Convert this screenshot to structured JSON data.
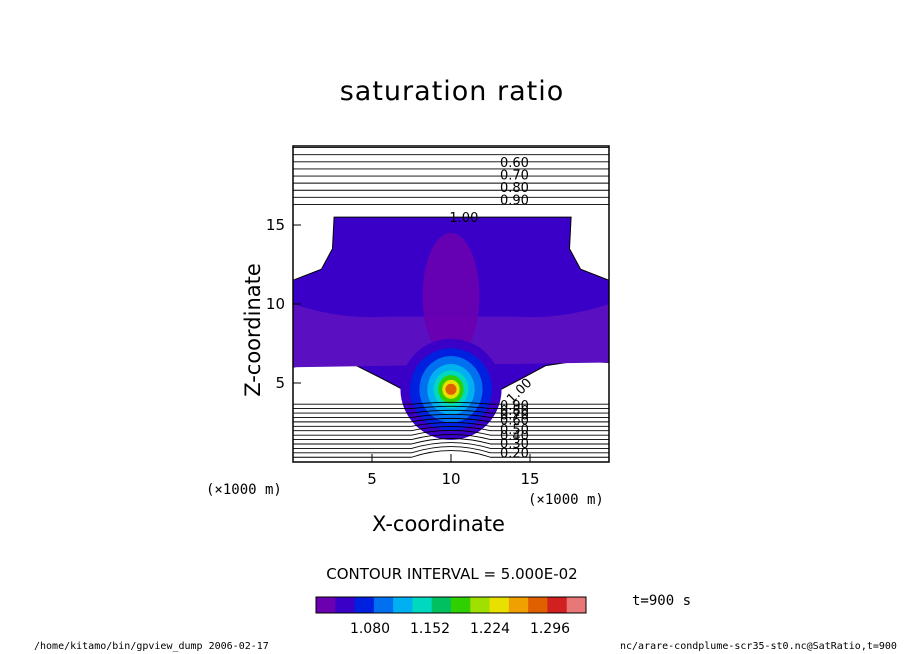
{
  "chart_data": {
    "type": "contour",
    "title": "saturation ratio",
    "xlabel": "X-coordinate",
    "ylabel": "Z-coordinate",
    "x_unit": "(×1000 m)",
    "y_unit": "(×1000 m)",
    "xlim": [
      0,
      20
    ],
    "ylim": [
      0,
      20
    ],
    "xticks": [
      5,
      10,
      15
    ],
    "yticks": [
      5,
      10,
      15
    ],
    "contour_labels_upper": [
      "0.60",
      "0.70",
      "0.80",
      "0.90",
      "1.00"
    ],
    "contour_labels_lower": [
      "1.00",
      "0.90",
      "0.80",
      "0.70",
      "0.60",
      "0.50",
      "0.40",
      "0.30",
      "0.20"
    ],
    "contour_interval_text": "CONTOUR INTERVAL = 5.000E-02",
    "colorbar_ticks": [
      "1.080",
      "1.152",
      "1.224",
      "1.296"
    ],
    "colorbar_colors": [
      "#6a00b0",
      "#3a00c8",
      "#0020e0",
      "#0070f0",
      "#00b0f0",
      "#00d8c0",
      "#00c060",
      "#30d000",
      "#a0e000",
      "#e8e000",
      "#f0a000",
      "#e06000",
      "#d02020",
      "#e87878"
    ]
  },
  "time_label": "t=900 s",
  "footer_left": "/home/kitamo/bin/gpview_dump  2006-02-17",
  "footer_right": "nc/arare-condplume-scr35-st0.nc@SatRatio,t=900"
}
